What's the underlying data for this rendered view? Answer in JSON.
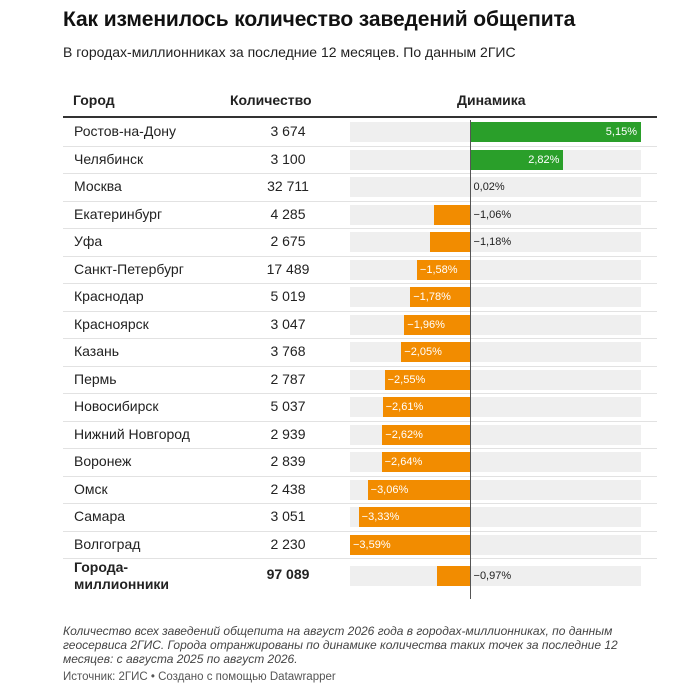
{
  "header": {
    "title": "Как изменилось количество заведений общепита",
    "subtitle": "В городах-миллионниках за последние 12 месяцев. По данным 2ГИС"
  },
  "table": {
    "columns": [
      "Город",
      "Количество",
      "Динамика"
    ]
  },
  "footer": {
    "notes": "Количество всех заведений общепита на август 2026 года в городах-миллионниках, по данным геосервиса 2ГИС. Города отранжированы по динамике количества таких точек за последние 12 месяцев: с августа 2025 по август 2026.",
    "source": "Источник: 2ГИС • Создано с помощью Datawrapper"
  },
  "colors": {
    "positive": "#2a9f2a",
    "negative": "#f28c00",
    "track": "#efefef",
    "axis": "#555555"
  },
  "chart_data": {
    "type": "table",
    "value_range": [
      -3.59,
      5.15
    ],
    "rows": [
      {
        "city": "Ростов-на-Дону",
        "count": "3 674",
        "change": 5.15,
        "label": "5,15%"
      },
      {
        "city": "Челябинск",
        "count": "3 100",
        "change": 2.82,
        "label": "2,82%"
      },
      {
        "city": "Москва",
        "count": "32 711",
        "change": 0.02,
        "label": "0,02%"
      },
      {
        "city": "Екатеринбург",
        "count": "4 285",
        "change": -1.06,
        "label": "−1,06%"
      },
      {
        "city": "Уфа",
        "count": "2 675",
        "change": -1.18,
        "label": "−1,18%"
      },
      {
        "city": "Санкт-Петербург",
        "count": "17 489",
        "change": -1.58,
        "label": "−1,58%"
      },
      {
        "city": "Краснодар",
        "count": "5 019",
        "change": -1.78,
        "label": "−1,78%"
      },
      {
        "city": "Красноярск",
        "count": "3 047",
        "change": -1.96,
        "label": "−1,96%"
      },
      {
        "city": "Казань",
        "count": "3 768",
        "change": -2.05,
        "label": "−2,05%"
      },
      {
        "city": "Пермь",
        "count": "2 787",
        "change": -2.55,
        "label": "−2,55%"
      },
      {
        "city": "Новосибирск",
        "count": "5 037",
        "change": -2.61,
        "label": "−2,61%"
      },
      {
        "city": "Нижний Новгород",
        "count": "2 939",
        "change": -2.62,
        "label": "−2,62%"
      },
      {
        "city": "Воронеж",
        "count": "2 839",
        "change": -2.64,
        "label": "−2,64%"
      },
      {
        "city": "Омск",
        "count": "2 438",
        "change": -3.06,
        "label": "−3,06%"
      },
      {
        "city": "Самара",
        "count": "3 051",
        "change": -3.33,
        "label": "−3,33%"
      },
      {
        "city": "Волгоград",
        "count": "2 230",
        "change": -3.59,
        "label": "−3,59%"
      }
    ],
    "total": {
      "city_lines": [
        "Города-",
        "миллионники"
      ],
      "count": "97 089",
      "change": -0.97,
      "label": "−0,97%"
    }
  }
}
